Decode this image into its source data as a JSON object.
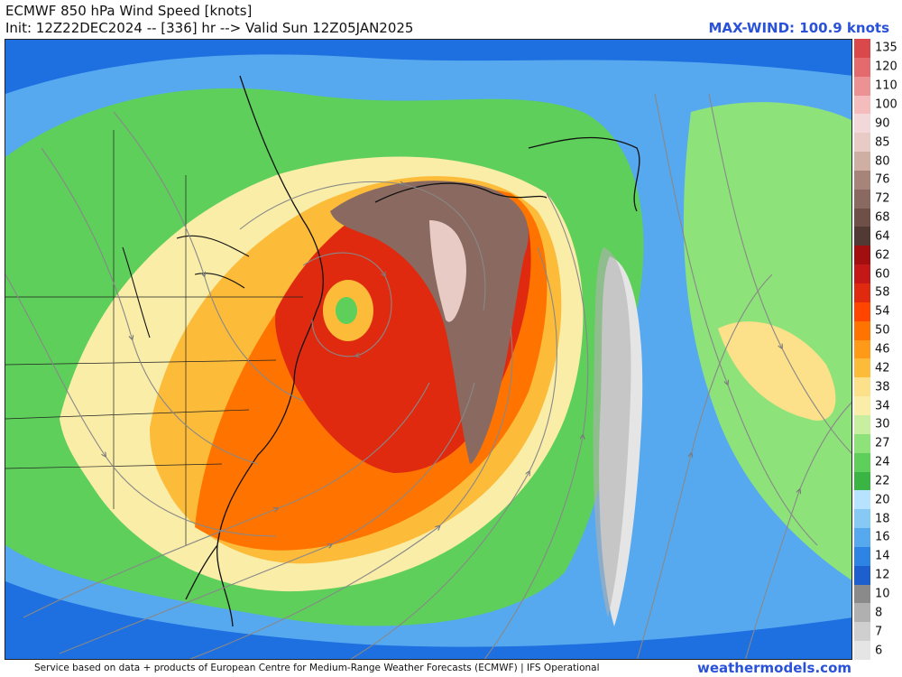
{
  "header": {
    "title": "ECMWF 850 hPa Wind Speed [knots]",
    "init_line": "Init: 12Z22DEC2024 -- [336] hr --> Valid Sun 12Z05JAN2025",
    "max_wind": "MAX-WIND: 100.9 knots"
  },
  "colorbar": {
    "labels": [
      "135",
      "120",
      "110",
      "100",
      "90",
      "85",
      "80",
      "76",
      "72",
      "68",
      "64",
      "62",
      "60",
      "58",
      "54",
      "50",
      "46",
      "42",
      "38",
      "34",
      "30",
      "27",
      "24",
      "22",
      "20",
      "18",
      "16",
      "14",
      "12",
      "10",
      "8",
      "7",
      "6"
    ],
    "colors": [
      "#d9484a",
      "#e36b6d",
      "#ec9294",
      "#f5bcbd",
      "#f2d8d8",
      "#e8cbc4",
      "#cfaea4",
      "#a7847a",
      "#8a6a60",
      "#6e5048",
      "#513a33",
      "#a30f0f",
      "#c41818",
      "#e02a10",
      "#ff4500",
      "#ff7400",
      "#ff9a18",
      "#fdbb3a",
      "#fde08a",
      "#f9eda8",
      "#c8eea0",
      "#8ee27a",
      "#5ecf5a",
      "#3ab544",
      "#b6e3ff",
      "#87c9f5",
      "#56a9ef",
      "#2e84e4",
      "#1e5fd0",
      "#8a8a8a",
      "#b0b0b0",
      "#cfcfcf",
      "#e5e5e5"
    ]
  },
  "footer": {
    "credit": "Service based on data + products of European Centre for Medium-Range Weather Forecasts (ECMWF) | IFS Operational",
    "website": "weathermodels.com"
  }
}
